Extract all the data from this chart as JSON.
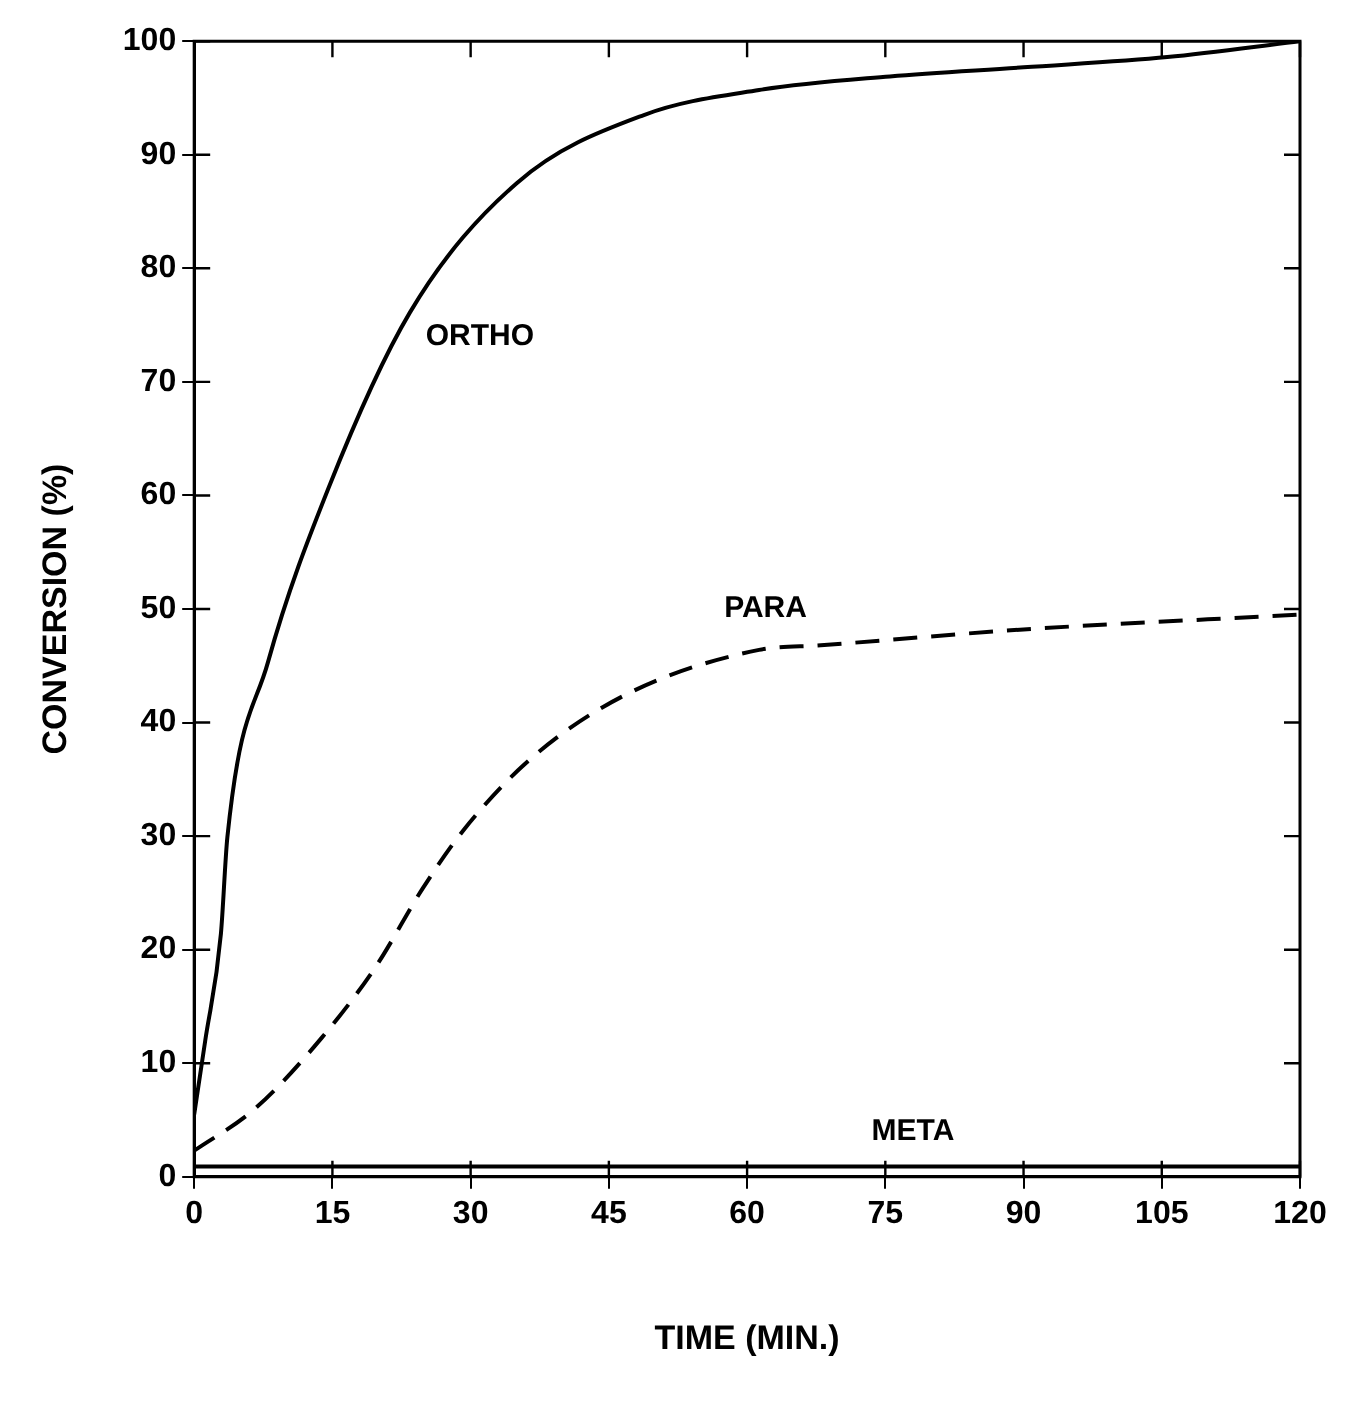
{
  "chart_data": {
    "type": "line",
    "xlabel": "TIME (MIN.)",
    "ylabel": "CONVERSION (%)",
    "xlim": [
      0,
      120
    ],
    "ylim": [
      0,
      100
    ],
    "xticks": [
      0,
      15,
      30,
      45,
      60,
      75,
      90,
      105,
      120
    ],
    "yticks": [
      0,
      10,
      20,
      30,
      40,
      50,
      60,
      70,
      80,
      90,
      100
    ],
    "grid": false,
    "legend": false,
    "marker": "none",
    "series": [
      {
        "name": "ORTHO",
        "color": "#000000",
        "line_style": "solid",
        "x": [
          0,
          1.2,
          2.9,
          3.6,
          8,
          14.6,
          23.4,
          35,
          48.8,
          61.3,
          75.5,
          90,
          105.6,
          120
        ],
        "values": [
          5.5,
          12,
          21.4,
          29.9,
          45.3,
          60.7,
          76.1,
          87.5,
          93.5,
          95.7,
          96.9,
          97.7,
          98.6,
          100
        ]
      },
      {
        "name": "PARA",
        "color": "#000000",
        "line_style": "dashed",
        "x": [
          0,
          6.6,
          13.9,
          19.7,
          24.8,
          29.2,
          36.5,
          46.7,
          61.3,
          68,
          90,
          120
        ],
        "values": [
          2.3,
          6,
          12.3,
          18.5,
          25.4,
          30.5,
          36.8,
          42.4,
          46.4,
          46.8,
          48.2,
          49.5
        ]
      },
      {
        "name": "META",
        "color": "#000000",
        "line_style": "solid",
        "x": [
          0,
          120
        ],
        "values": [
          0.9,
          0.9
        ]
      }
    ]
  }
}
